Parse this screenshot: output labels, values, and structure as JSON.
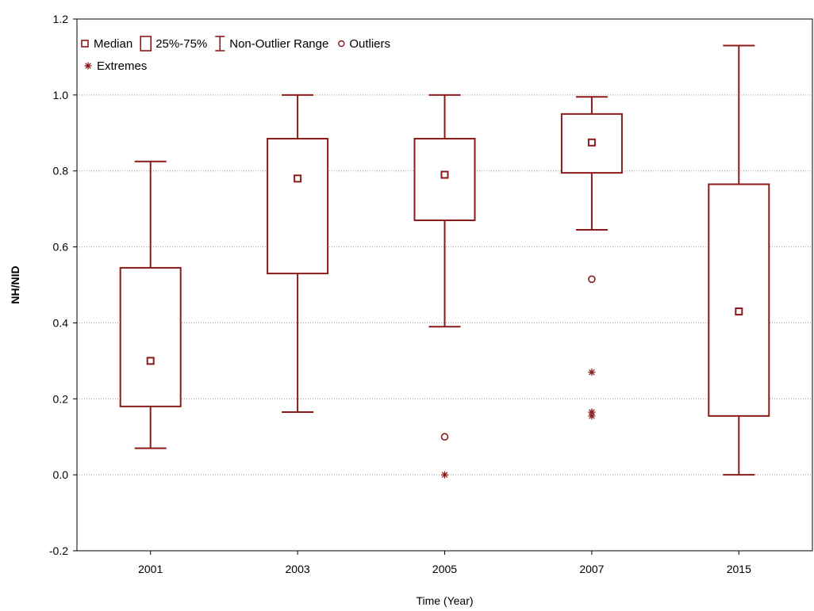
{
  "chart_data": {
    "type": "box",
    "xlabel": "Time (Year)",
    "ylabel": "NH/NID",
    "ylim": [
      -0.2,
      1.2
    ],
    "yticks": [
      "-0.2",
      "0.0",
      "0.2",
      "0.4",
      "0.6",
      "0.8",
      "1.0",
      "1.2"
    ],
    "grid": "horizontal dotted",
    "color": "#8b1a1a",
    "categories": [
      "2001",
      "2003",
      "2005",
      "2007",
      "2015"
    ],
    "boxes": [
      {
        "category": "2001",
        "min": 0.07,
        "q1": 0.18,
        "median": 0.3,
        "q3": 0.545,
        "max": 0.825,
        "outliers": [],
        "extremes": []
      },
      {
        "category": "2003",
        "min": 0.165,
        "q1": 0.53,
        "median": 0.78,
        "q3": 0.885,
        "max": 1.0,
        "outliers": [],
        "extremes": []
      },
      {
        "category": "2005",
        "min": 0.39,
        "q1": 0.67,
        "median": 0.79,
        "q3": 0.885,
        "max": 1.0,
        "outliers": [
          0.1
        ],
        "extremes": [
          0.0
        ]
      },
      {
        "category": "2007",
        "min": 0.645,
        "q1": 0.795,
        "median": 0.875,
        "q3": 0.95,
        "max": 0.995,
        "outliers": [
          0.515
        ],
        "extremes": [
          0.27,
          0.165,
          0.155
        ]
      },
      {
        "category": "2015",
        "min": 0.0,
        "q1": 0.155,
        "median": 0.43,
        "q3": 0.765,
        "max": 1.13,
        "outliers": [],
        "extremes": []
      }
    ],
    "legend": {
      "placement": "top-left",
      "items": [
        {
          "symbol": "median",
          "label": "Median"
        },
        {
          "symbol": "box",
          "label": "25%-75%"
        },
        {
          "symbol": "whisker",
          "label": "Non-Outlier Range"
        },
        {
          "symbol": "outlier",
          "label": "Outliers"
        },
        {
          "symbol": "extreme",
          "label": "Extremes"
        }
      ]
    }
  }
}
